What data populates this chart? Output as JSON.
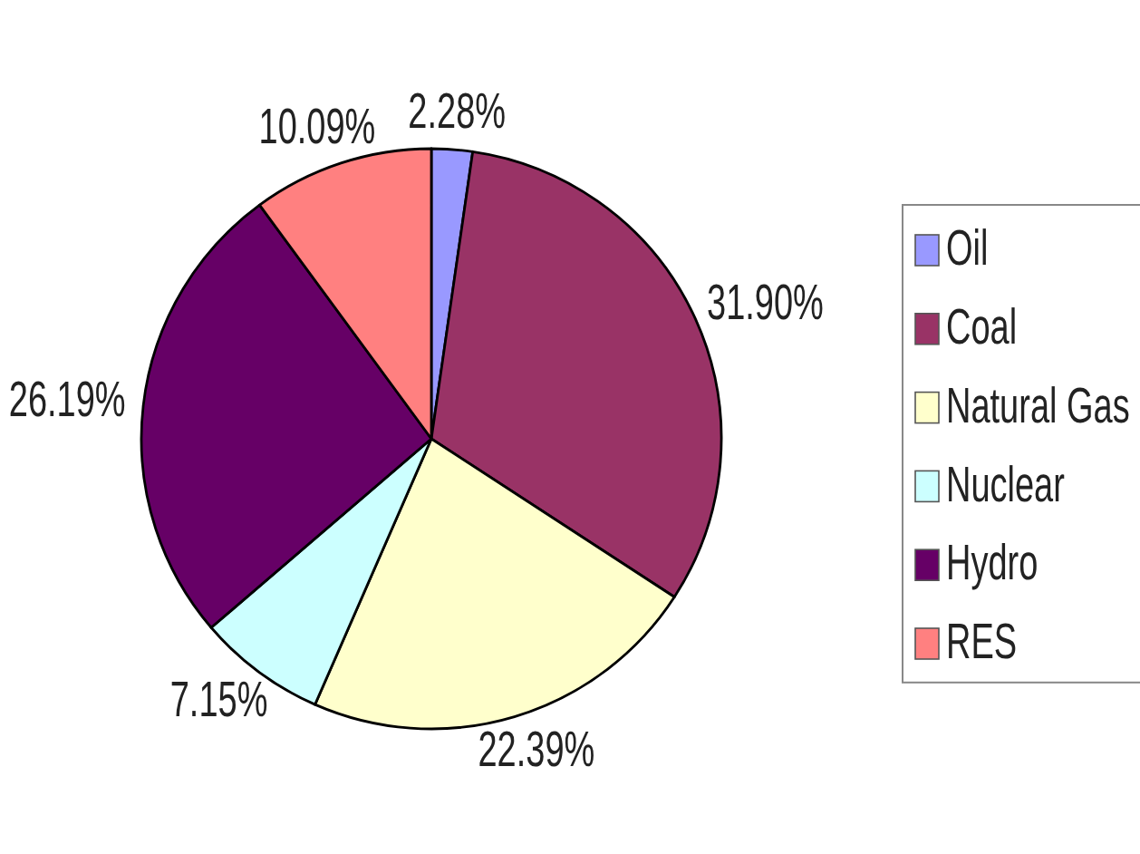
{
  "chart_data": {
    "type": "pie",
    "categories": [
      "Oil",
      "Coal",
      "Natural Gas",
      "Nuclear",
      "Hydro",
      "RES"
    ],
    "values": [
      2.28,
      31.9,
      22.39,
      7.15,
      26.19,
      10.09
    ],
    "colors": [
      "#9999ff",
      "#993366",
      "#ffffcc",
      "#ccffff",
      "#660066",
      "#ff8080"
    ],
    "value_labels": [
      "2.28%",
      "31.90%",
      "22.39%",
      "7.15%",
      "26.19%",
      "10.09%"
    ],
    "legend": "right"
  }
}
